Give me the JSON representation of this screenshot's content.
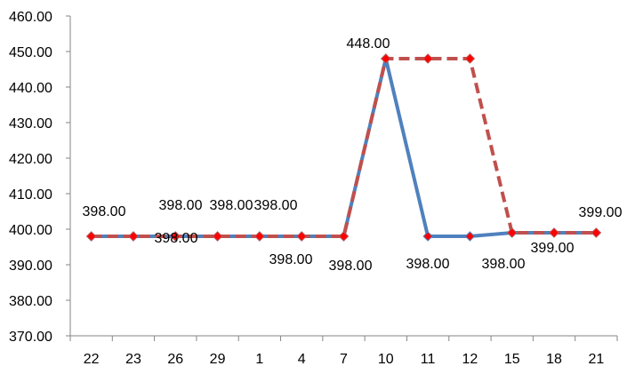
{
  "chart_data": {
    "type": "line",
    "title": "",
    "xlabel": "",
    "ylabel": "",
    "categories": [
      "22",
      "23",
      "26",
      "29",
      "1",
      "4",
      "7",
      "10",
      "11",
      "12",
      "15",
      "18",
      "21"
    ],
    "ylim": [
      370,
      460
    ],
    "yticks": [
      370,
      380,
      390,
      400,
      410,
      420,
      430,
      440,
      450,
      460
    ],
    "ytick_labels": [
      "370.00",
      "380.00",
      "390.00",
      "400.00",
      "410.00",
      "420.00",
      "430.00",
      "440.00",
      "450.00",
      "460.00"
    ],
    "grid": false,
    "legend": "none",
    "series": [
      {
        "values": [
          398,
          398,
          398,
          398,
          398,
          398,
          398,
          448,
          398,
          398,
          399,
          399,
          399
        ],
        "color": "#4f81bd",
        "line_style": "solid",
        "marker": "diamond",
        "marker_color": "#ff0000"
      },
      {
        "values": [
          398,
          398,
          398,
          398,
          398,
          398,
          398,
          448,
          448,
          448,
          399,
          399,
          399
        ],
        "color": "#c0504d",
        "line_style": "dashed",
        "marker": "diamond",
        "marker_color": "#ff0000"
      }
    ],
    "data_labels": [
      {
        "text": "398.00"
      },
      {
        "text": "398.00"
      },
      {
        "text": "398.00"
      },
      {
        "text": "398.00"
      },
      {
        "text": "398.00"
      },
      {
        "text": "398.00"
      },
      {
        "text": "398.00"
      },
      {
        "text": "448.00"
      },
      {
        "text": "398.00"
      },
      {
        "text": "398.00"
      },
      {
        "text": "399.00"
      },
      {
        "text": "399.00"
      }
    ]
  }
}
